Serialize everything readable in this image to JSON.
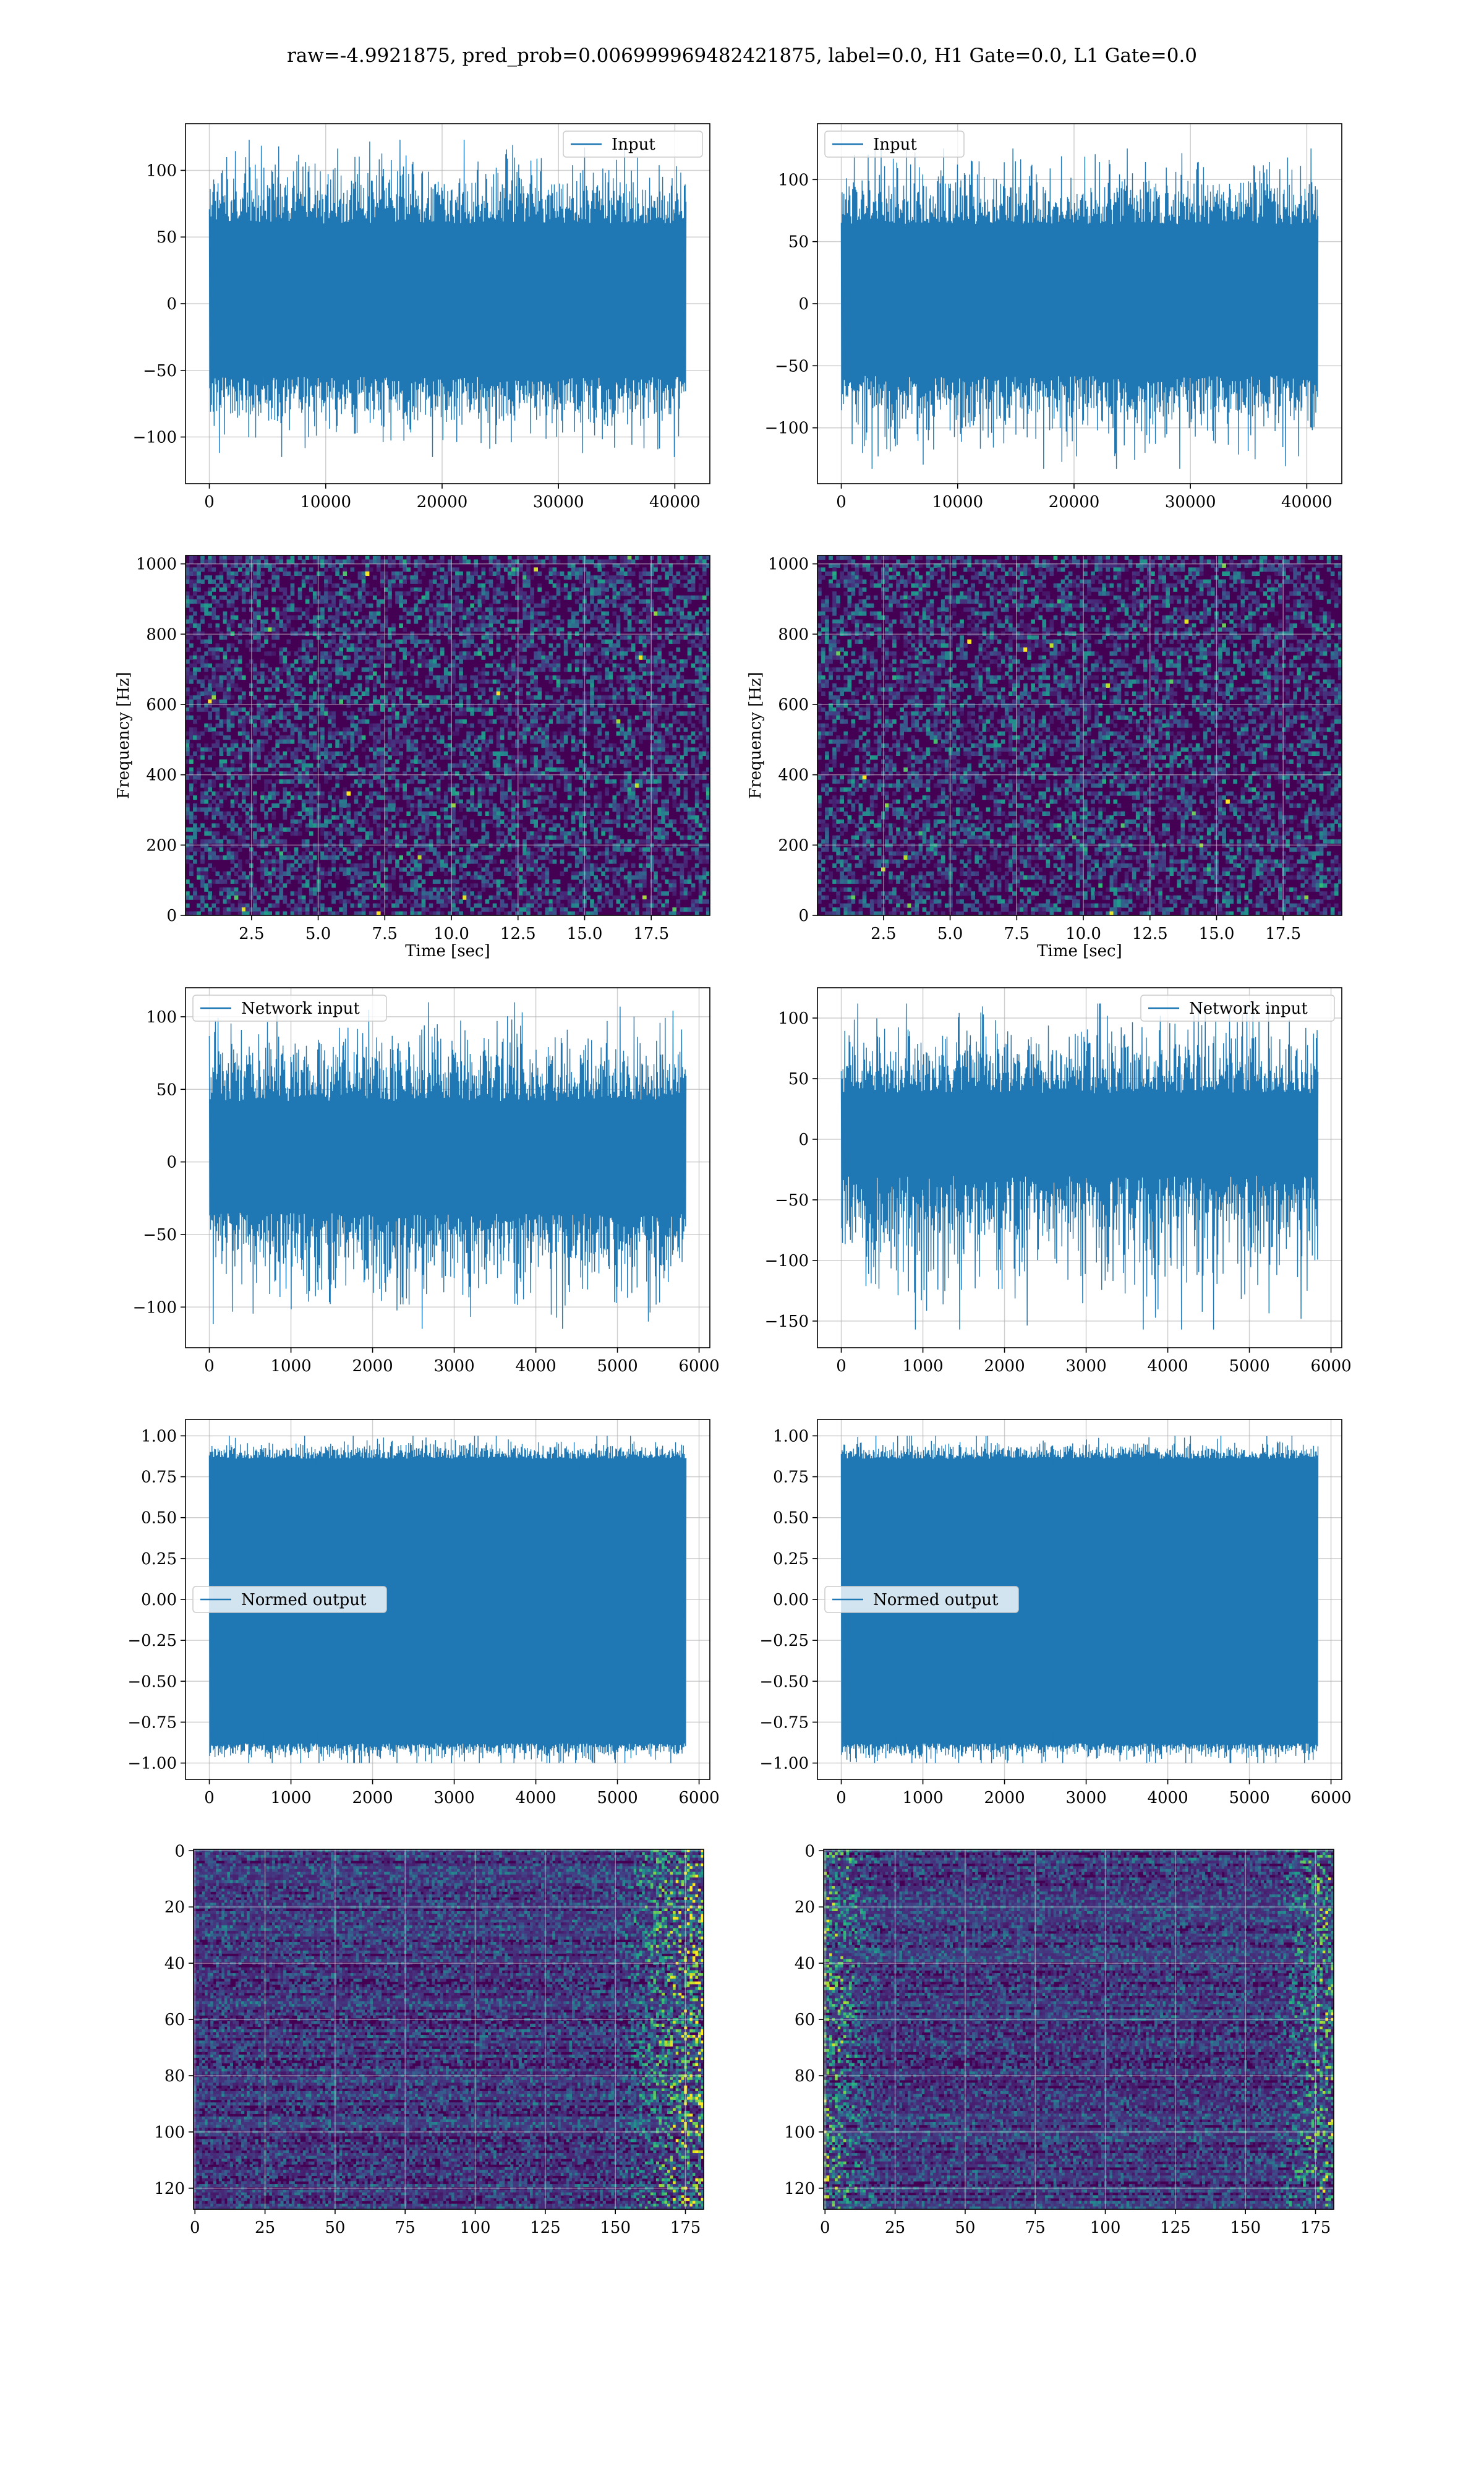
{
  "title": "raw=-4.9921875, pred_prob=0.006999969482421875, label=0.0, H1 Gate=0.0, L1 Gate=0.0",
  "colors": {
    "series": "#1f77b4",
    "axis": "#000000",
    "grid": "#b0b0b0",
    "viridis_low": "#440154"
  },
  "chart_data": [
    {
      "id": "h1_input",
      "type": "line",
      "panel": "row1-left",
      "series": [
        {
          "name": "Input"
        }
      ],
      "legend_loc": "upper right",
      "grid": true,
      "xlim": [
        -2048,
        43008
      ],
      "ylim": [
        -135,
        135
      ],
      "xticks": [
        0,
        10000,
        20000,
        30000,
        40000
      ],
      "xticklabels": [
        "0",
        "10000",
        "20000",
        "30000",
        "40000"
      ],
      "yticks": [
        100,
        50,
        0,
        -50,
        -100
      ],
      "yticklabels": [
        "100",
        "50",
        "0",
        "−50",
        "−100"
      ],
      "x_range": [
        0,
        40960
      ],
      "band": [
        -55,
        60
      ],
      "peak_max": 123,
      "peak_min": -115
    },
    {
      "id": "l1_input",
      "type": "line",
      "panel": "row1-right",
      "series": [
        {
          "name": "Input"
        }
      ],
      "legend_loc": "upper left",
      "grid": true,
      "xlim": [
        -2048,
        43008
      ],
      "ylim": [
        -145,
        145
      ],
      "xticks": [
        0,
        10000,
        20000,
        30000,
        40000
      ],
      "xticklabels": [
        "0",
        "10000",
        "20000",
        "30000",
        "40000"
      ],
      "yticks": [
        100,
        50,
        0,
        -50,
        -100
      ],
      "yticklabels": [
        "100",
        "50",
        "0",
        "−50",
        "−100"
      ],
      "x_range": [
        0,
        40960
      ],
      "band": [
        -58,
        64
      ],
      "peak_max": 125,
      "peak_min": -133
    },
    {
      "id": "h1_spectrogram",
      "type": "heatmap",
      "panel": "row2-left",
      "colormap": "viridis",
      "grid": true,
      "xlim": [
        0.02,
        19.7
      ],
      "ylim": [
        0,
        1024
      ],
      "xticks": [
        2.5,
        5,
        7.5,
        10,
        12.5,
        15,
        17.5
      ],
      "xticklabels": [
        "2.5",
        "5.0",
        "7.5",
        "10.0",
        "12.5",
        "15.0",
        "17.5"
      ],
      "yticks": [
        0,
        200,
        400,
        600,
        800,
        1000
      ],
      "yticklabels": [
        "0",
        "200",
        "400",
        "600",
        "800",
        "1000"
      ],
      "xlabel": "Time [sec]",
      "ylabel": "Frequency [Hz]"
    },
    {
      "id": "l1_spectrogram",
      "type": "heatmap",
      "panel": "row2-right",
      "colormap": "viridis",
      "grid": true,
      "xlim": [
        0.02,
        19.7
      ],
      "ylim": [
        0,
        1024
      ],
      "xticks": [
        2.5,
        5,
        7.5,
        10,
        12.5,
        15,
        17.5
      ],
      "xticklabels": [
        "2.5",
        "5.0",
        "7.5",
        "10.0",
        "12.5",
        "15.0",
        "17.5"
      ],
      "yticks": [
        0,
        200,
        400,
        600,
        800,
        1000
      ],
      "yticklabels": [
        "0",
        "200",
        "400",
        "600",
        "800",
        "1000"
      ],
      "xlabel": "Time [sec]",
      "ylabel": "Frequency [Hz]"
    },
    {
      "id": "h1_network_input",
      "type": "line",
      "panel": "row3-left",
      "series": [
        {
          "name": "Network input"
        }
      ],
      "legend_loc": "upper left",
      "grid": true,
      "xlim": [
        -292,
        6132
      ],
      "ylim": [
        -128,
        120
      ],
      "xticks": [
        0,
        1000,
        2000,
        3000,
        4000,
        5000,
        6000
      ],
      "xticklabels": [
        "0",
        "1000",
        "2000",
        "3000",
        "4000",
        "5000",
        "6000"
      ],
      "yticks": [
        100,
        50,
        0,
        -50,
        -100
      ],
      "yticklabels": [
        "100",
        "50",
        "0",
        "−50",
        "−100"
      ],
      "x_range": [
        0,
        5840
      ],
      "band": [
        -35,
        42
      ],
      "peak_max": 110,
      "peak_min": -115
    },
    {
      "id": "l1_network_input",
      "type": "line",
      "panel": "row3-right",
      "series": [
        {
          "name": "Network input"
        }
      ],
      "legend_loc": "upper right",
      "grid": true,
      "xlim": [
        -292,
        6132
      ],
      "ylim": [
        -172,
        125
      ],
      "xticks": [
        0,
        1000,
        2000,
        3000,
        4000,
        5000,
        6000
      ],
      "xticklabels": [
        "0",
        "1000",
        "2000",
        "3000",
        "4000",
        "5000",
        "6000"
      ],
      "yticks": [
        100,
        50,
        0,
        -50,
        -100,
        -150
      ],
      "yticklabels": [
        "100",
        "50",
        "0",
        "−50",
        "−100",
        "−150"
      ],
      "x_range": [
        0,
        5840
      ],
      "band": [
        -30,
        38
      ],
      "peak_max": 112,
      "peak_min": -157
    },
    {
      "id": "h1_normed_output",
      "type": "line",
      "panel": "row4-left",
      "series": [
        {
          "name": "Normed output"
        }
      ],
      "legend_loc": "center left",
      "grid": true,
      "xlim": [
        -292,
        6132
      ],
      "ylim": [
        -1.1,
        1.1
      ],
      "xticks": [
        0,
        1000,
        2000,
        3000,
        4000,
        5000,
        6000
      ],
      "xticklabels": [
        "0",
        "1000",
        "2000",
        "3000",
        "4000",
        "5000",
        "6000"
      ],
      "yticks": [
        1.0,
        0.75,
        0.5,
        0.25,
        0.0,
        -0.25,
        -0.5,
        -0.75,
        -1.0
      ],
      "yticklabels": [
        "1.00",
        "0.75",
        "0.50",
        "0.25",
        "0.00",
        "−0.25",
        "−0.50",
        "−0.75",
        "−1.00"
      ],
      "x_range": [
        0,
        5840
      ],
      "band": [
        -0.88,
        0.86
      ],
      "peak_max": 1.0,
      "peak_min": -1.0
    },
    {
      "id": "l1_normed_output",
      "type": "line",
      "panel": "row4-right",
      "series": [
        {
          "name": "Normed output"
        }
      ],
      "legend_loc": "center left",
      "grid": true,
      "xlim": [
        -292,
        6132
      ],
      "ylim": [
        -1.1,
        1.1
      ],
      "xticks": [
        0,
        1000,
        2000,
        3000,
        4000,
        5000,
        6000
      ],
      "xticklabels": [
        "0",
        "1000",
        "2000",
        "3000",
        "4000",
        "5000",
        "6000"
      ],
      "yticks": [
        1.0,
        0.75,
        0.5,
        0.25,
        0.0,
        -0.25,
        -0.5,
        -0.75,
        -1.0
      ],
      "yticklabels": [
        "1.00",
        "0.75",
        "0.50",
        "0.25",
        "0.00",
        "−0.25",
        "−0.50",
        "−0.75",
        "−1.00"
      ],
      "x_range": [
        0,
        5840
      ],
      "band": [
        -0.88,
        0.86
      ],
      "peak_max": 1.0,
      "peak_min": -1.0
    },
    {
      "id": "h1_feature_map",
      "type": "heatmap",
      "panel": "row5-left",
      "colormap": "viridis",
      "grid": true,
      "xlim": [
        -0.5,
        181.5
      ],
      "ylim": [
        127.5,
        -0.5
      ],
      "y_inverted": true,
      "xticks": [
        0,
        25,
        50,
        75,
        100,
        125,
        150,
        175
      ],
      "xticklabels": [
        "0",
        "25",
        "50",
        "75",
        "100",
        "125",
        "150",
        "175"
      ],
      "yticks": [
        0,
        20,
        40,
        60,
        80,
        100,
        120
      ],
      "yticklabels": [
        "0",
        "20",
        "40",
        "60",
        "80",
        "100",
        "120"
      ]
    },
    {
      "id": "l1_feature_map",
      "type": "heatmap",
      "panel": "row5-right",
      "colormap": "viridis",
      "grid": true,
      "xlim": [
        -0.5,
        181.5
      ],
      "ylim": [
        127.5,
        -0.5
      ],
      "y_inverted": true,
      "xticks": [
        0,
        25,
        50,
        75,
        100,
        125,
        150,
        175
      ],
      "xticklabels": [
        "0",
        "25",
        "50",
        "75",
        "100",
        "125",
        "150",
        "175"
      ],
      "yticks": [
        0,
        20,
        40,
        60,
        80,
        100,
        120
      ],
      "yticklabels": [
        "0",
        "20",
        "40",
        "60",
        "80",
        "100",
        "120"
      ]
    }
  ]
}
